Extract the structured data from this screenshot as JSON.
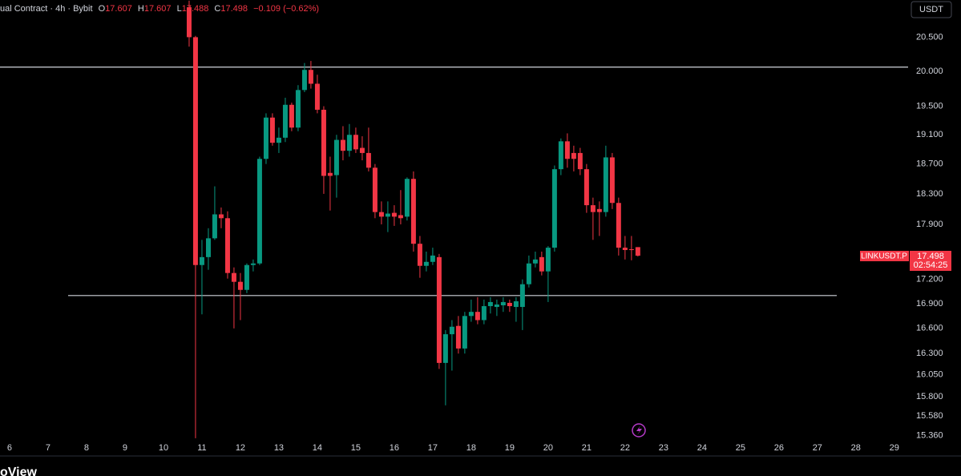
{
  "header": {
    "prefix": "ual Contract · 4h · Bybit",
    "ohlc_labels": [
      "O",
      "H",
      "L",
      "C"
    ],
    "change": "−0.109 (−0.62%)"
  },
  "currency_button": "USDT",
  "price_tag": {
    "symbol": "LINKUSDT.P",
    "countdown": "02:54:25"
  },
  "footer": "oView",
  "chart_data": {
    "type": "candlestick",
    "log": true,
    "up_color": "#089981",
    "down_color": "#f23645",
    "hline_color": "#d1d4dc",
    "x": [
      10.667,
      10.833,
      11,
      11.167,
      11.333,
      11.5,
      11.667,
      11.833,
      12,
      12.167,
      12.333,
      12.5,
      12.667,
      12.833,
      13,
      13.167,
      13.333,
      13.5,
      13.667,
      13.833,
      14,
      14.167,
      14.333,
      14.5,
      14.667,
      14.833,
      15,
      15.167,
      15.333,
      15.5,
      15.667,
      15.833,
      16,
      16.167,
      16.333,
      16.5,
      16.667,
      16.833,
      17,
      17.167,
      17.333,
      17.5,
      17.667,
      17.833,
      18,
      18.167,
      18.333,
      18.5,
      18.667,
      18.833,
      19,
      19.167,
      19.333,
      19.5,
      19.667,
      19.833,
      20,
      20.167,
      20.333,
      20.5,
      20.667,
      20.833,
      21,
      21.167,
      21.333,
      21.5,
      21.667,
      21.833,
      22,
      22.167,
      22.333
    ],
    "open": [
      20.95,
      20.5,
      17.38,
      17.48,
      17.72,
      18.03,
      17.98,
      17.28,
      17.17,
      17.07,
      17.38,
      17.4,
      18.77,
      19.34,
      18.99,
      19.06,
      19.52,
      19.2,
      19.73,
      20.02,
      19.82,
      19.45,
      18.58,
      18.55,
      19.03,
      18.88,
      19.1,
      18.92,
      18.85,
      18.65,
      18.06,
      18,
      18.05,
      18.02,
      18,
      18.5,
      17.65,
      17.37,
      17.42,
      17.48,
      16.19,
      16.53,
      16.63,
      16.36,
      16.75,
      16.8,
      16.7,
      16.87,
      16.86,
      16.88,
      16.91,
      16.86,
      16.86,
      17.14,
      17.4,
      17.48,
      17.3,
      17.6,
      18.63,
      19.01,
      18.85,
      18.85,
      18.63,
      18.15,
      18.1,
      18.06,
      18.79,
      18.18,
      17.6,
      17.58,
      17.607
    ],
    "high": [
      21.05,
      20.52,
      17.7,
      17.85,
      18.4,
      18.12,
      18.07,
      17.35,
      17.28,
      17.4,
      17.45,
      18.8,
      19.4,
      19.4,
      19.2,
      19.62,
      19.55,
      19.8,
      20.12,
      20.15,
      19.95,
      19.5,
      18.8,
      19.1,
      19.22,
      19.25,
      19.2,
      19.08,
      19.2,
      18.7,
      18.2,
      18.2,
      18.15,
      18.35,
      18.52,
      18.6,
      17.75,
      17.55,
      17.6,
      17.52,
      16.58,
      16.7,
      16.75,
      16.8,
      16.95,
      16.98,
      16.95,
      16.98,
      16.95,
      16.98,
      16.95,
      16.98,
      17.2,
      17.5,
      17.55,
      17.55,
      17.62,
      18.68,
      19.05,
      19.12,
      18.95,
      18.92,
      18.7,
      18.25,
      18.2,
      18.95,
      18.85,
      18.25,
      17.75,
      17.75,
      17.607
    ],
    "low": [
      20.36,
      15.33,
      16.77,
      17.32,
      17.7,
      17.85,
      17.21,
      16.6,
      16.7,
      17.03,
      17.3,
      17.38,
      18.7,
      18.95,
      18.85,
      19,
      19.15,
      19.15,
      19.7,
      19.75,
      19.4,
      18.3,
      18.08,
      18.25,
      18.75,
      18.8,
      18.85,
      18.75,
      18.6,
      17.98,
      17.9,
      17.8,
      17.88,
      17.9,
      17.95,
      17.55,
      17.22,
      17.3,
      17.38,
      16.12,
      15.7,
      16.1,
      16.3,
      16.3,
      16.68,
      16.65,
      16.65,
      16.78,
      16.75,
      16.8,
      16.8,
      16.68,
      16.58,
      17.1,
      17.35,
      17.25,
      16.92,
      17.55,
      18.55,
      18.65,
      18.6,
      18.55,
      18.05,
      17.7,
      17.75,
      18,
      18.1,
      17.5,
      17.45,
      17.44,
      17.488
    ],
    "close": [
      20.5,
      17.38,
      17.48,
      17.72,
      18.03,
      17.98,
      17.28,
      17.17,
      17.07,
      17.38,
      17.4,
      18.77,
      19.34,
      18.99,
      19.06,
      19.52,
      19.2,
      19.73,
      20.02,
      19.82,
      19.45,
      18.54,
      18.54,
      19.03,
      18.88,
      19.1,
      18.9,
      18.85,
      18.65,
      18.06,
      18,
      18.04,
      18,
      17.98,
      18.5,
      17.65,
      17.37,
      17.42,
      17.5,
      16.19,
      16.53,
      16.62,
      16.36,
      16.75,
      16.8,
      16.7,
      16.87,
      16.92,
      16.89,
      16.92,
      16.87,
      16.93,
      17.14,
      17.4,
      17.45,
      17.3,
      17.6,
      18.63,
      19.01,
      18.77,
      18.77,
      18.63,
      18.15,
      18.06,
      18.06,
      18.79,
      18.18,
      17.6,
      17.57,
      17.57,
      17.498
    ],
    "hlines": [
      20.06,
      17.0
    ],
    "xlim": [
      5.75,
      29.4
    ],
    "xticks": [
      6,
      7,
      8,
      9,
      10,
      11,
      12,
      13,
      14,
      15,
      16,
      17,
      18,
      19,
      20,
      21,
      22,
      23,
      24,
      25,
      26,
      27,
      28,
      29
    ],
    "ylim": [
      15.32,
      21.06
    ],
    "yticks": [
      {
        "value": 20.5,
        "label": "20.500"
      },
      {
        "value": 20,
        "label": "20.000"
      },
      {
        "value": 19.5,
        "label": "19.500"
      },
      {
        "value": 19.1,
        "label": "19.100"
      },
      {
        "value": 18.7,
        "label": "18.700"
      },
      {
        "value": 18.3,
        "label": "18.300"
      },
      {
        "value": 17.9,
        "label": "17.900"
      },
      {
        "value": 17.2,
        "label": "17.200"
      },
      {
        "value": 16.9,
        "label": "16.900"
      },
      {
        "value": 16.6,
        "label": "16.600"
      },
      {
        "value": 16.3,
        "label": "16.300"
      },
      {
        "value": 16.05,
        "label": "16.050"
      },
      {
        "value": 15.8,
        "label": "15.800"
      },
      {
        "value": 15.58,
        "label": "15.580"
      },
      {
        "value": 15.36,
        "label": "15.360"
      }
    ]
  }
}
